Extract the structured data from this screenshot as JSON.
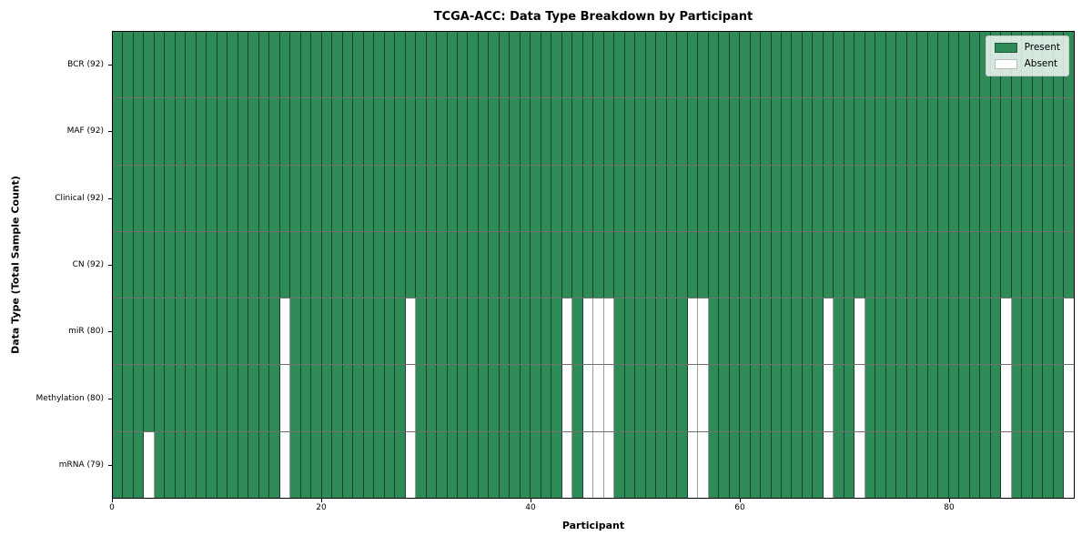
{
  "chart_data": {
    "type": "heatmap",
    "title": "TCGA-ACC: Data Type Breakdown by Participant",
    "xlabel": "Participant",
    "ylabel": "Data Type (Total Sample Count)",
    "x_ticks": [
      0,
      20,
      40,
      60,
      80
    ],
    "x_range": [
      0,
      92
    ],
    "n_participants": 92,
    "grid": false,
    "colors": {
      "present": "#2e8b57",
      "absent": "#ffffff"
    },
    "legend": {
      "position": "upper right",
      "items": [
        {
          "label": "Present",
          "value": "present"
        },
        {
          "label": "Absent",
          "value": "absent"
        }
      ]
    },
    "rows": [
      {
        "label": "BCR (92)",
        "data_type": "BCR",
        "present_count": 92,
        "absent_participants": []
      },
      {
        "label": "MAF (92)",
        "data_type": "MAF",
        "present_count": 92,
        "absent_participants": []
      },
      {
        "label": "Clinical (92)",
        "data_type": "Clinical",
        "present_count": 92,
        "absent_participants": []
      },
      {
        "label": "CN (92)",
        "data_type": "CN",
        "present_count": 92,
        "absent_participants": []
      },
      {
        "label": "miR (80)",
        "data_type": "miR",
        "present_count": 80,
        "absent_participants": [
          16,
          28,
          43,
          45,
          46,
          47,
          55,
          56,
          68,
          71,
          85,
          91
        ]
      },
      {
        "label": "Methylation (80)",
        "data_type": "Methylation",
        "present_count": 80,
        "absent_participants": [
          16,
          28,
          43,
          45,
          46,
          47,
          55,
          56,
          68,
          71,
          85,
          91
        ]
      },
      {
        "label": "mRNA (79)",
        "data_type": "mRNA",
        "present_count": 79,
        "absent_participants": [
          3,
          16,
          28,
          43,
          45,
          46,
          47,
          55,
          56,
          68,
          71,
          85,
          91
        ]
      }
    ]
  }
}
